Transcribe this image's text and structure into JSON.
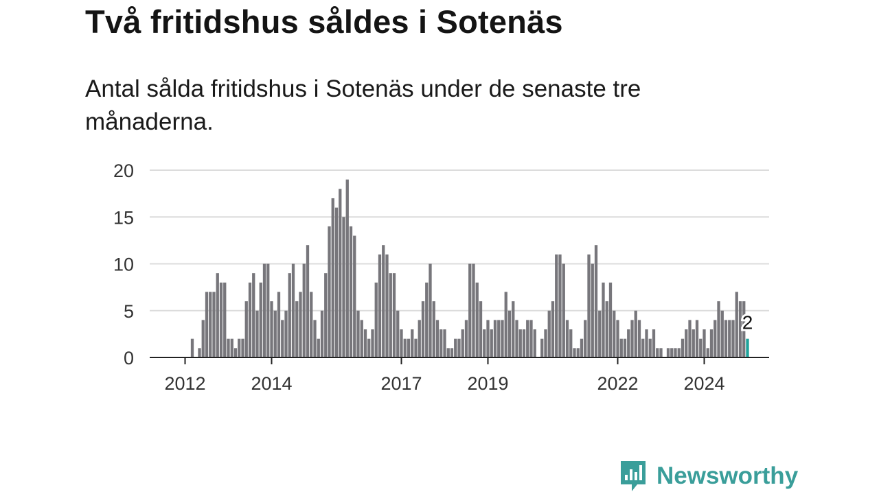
{
  "title": "Två fritidshus såldes i Sotenäs",
  "subtitle": "Antal sålda fritidshus i Sotenäs under de senaste tre månaderna.",
  "brand": {
    "name": "Newsworthy",
    "icon": "newsworthy-logo-icon"
  },
  "colors": {
    "bar": "#77767b",
    "highlight": "#1fa39b",
    "grid": "#dcdcdc",
    "axis": "#222222",
    "brand": "#3a9e9a"
  },
  "chart_data": {
    "type": "bar",
    "title": "",
    "xlabel": "",
    "ylabel": "",
    "ylim": [
      0,
      20
    ],
    "yticks": [
      "0",
      "5",
      "10",
      "15",
      "20"
    ],
    "xticks": [
      "2012",
      "2014",
      "2017",
      "2019",
      "2022",
      "2024"
    ],
    "grid": true,
    "legend": "none",
    "x_start": "2011-07",
    "highlight_label": "2",
    "series": [
      {
        "values": [
          0,
          0,
          0,
          0,
          0,
          0,
          0,
          0,
          2,
          0,
          1,
          4,
          7,
          7,
          7,
          9,
          8,
          8,
          2,
          2,
          1,
          2,
          2,
          6,
          8,
          9,
          5,
          8,
          10,
          10,
          6,
          5,
          7,
          4,
          5,
          9,
          10,
          6,
          7,
          10,
          12,
          7,
          4,
          2,
          5,
          9,
          14,
          17,
          16,
          18,
          15,
          19,
          14,
          13,
          5,
          4,
          3,
          2,
          3,
          8,
          11,
          12,
          11,
          9,
          9,
          5,
          3,
          2,
          2,
          3,
          2,
          4,
          6,
          8,
          10,
          6,
          4,
          3,
          3,
          1,
          1,
          2,
          2,
          3,
          4,
          10,
          10,
          8,
          6,
          3,
          4,
          3,
          4,
          4,
          4,
          7,
          5,
          6,
          4,
          3,
          3,
          4,
          4,
          3,
          0,
          2,
          3,
          5,
          6,
          11,
          11,
          10,
          4,
          3,
          1,
          1,
          2,
          4,
          11,
          10,
          12,
          5,
          8,
          6,
          8,
          5,
          4,
          2,
          2,
          3,
          4,
          5,
          4,
          2,
          3,
          2,
          3,
          1,
          1,
          0,
          1,
          1,
          1,
          1,
          2,
          3,
          4,
          3,
          4,
          2,
          3,
          1,
          3,
          4,
          6,
          5,
          4,
          4,
          4,
          7,
          6,
          6,
          2
        ]
      }
    ]
  }
}
